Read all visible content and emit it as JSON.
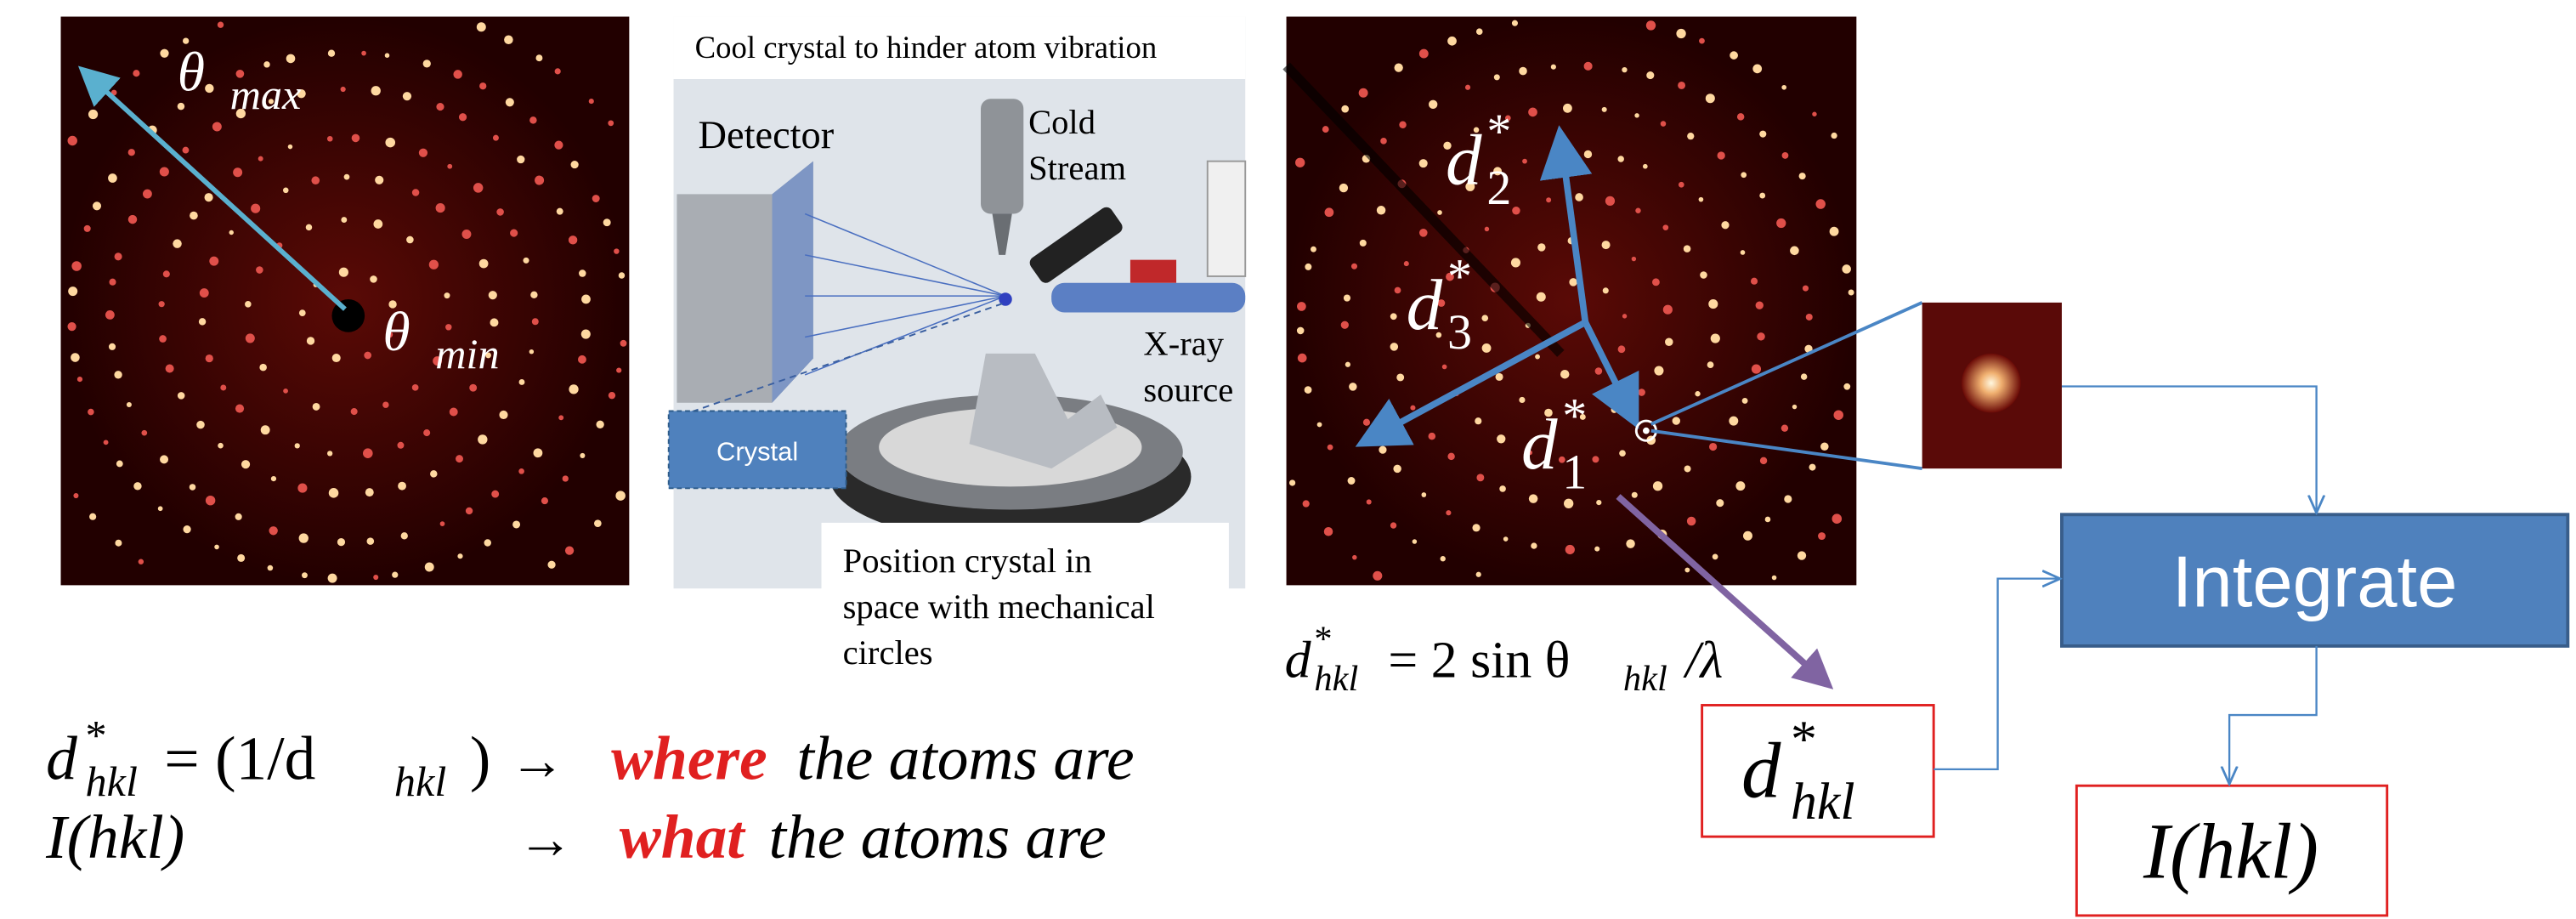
{
  "left_pattern": {
    "max_label": {
      "base": "θ",
      "sub": "max"
    },
    "min_label": {
      "base": "θ",
      "sub": "min"
    }
  },
  "instrument": {
    "caption_top": "Cool crystal to hinder atom vibration",
    "detector": "Detector",
    "cold_stream": [
      "Cold",
      "Stream"
    ],
    "xray_source": [
      "X-ray",
      "source"
    ],
    "crystal": "Crystal",
    "caption_bottom": [
      "Position crystal in",
      "space with mechanical",
      "circles"
    ]
  },
  "right_pattern": {
    "vectors": [
      {
        "base": "d",
        "sup": "*",
        "sub": "2"
      },
      {
        "base": "d",
        "sup": "*",
        "sub": "3"
      },
      {
        "base": "d",
        "sup": "*",
        "sub": "1"
      }
    ]
  },
  "formula": {
    "base": "d",
    "sup": "*",
    "sub": "hkl",
    "middle": "= 2 sin θ",
    "middle_sub": "hkl",
    "tail": "/λ"
  },
  "flow": {
    "process": "Integrate",
    "input": {
      "base": "d",
      "sup": "*",
      "sub": "hkl"
    },
    "output": "I(hkl)"
  },
  "summary": {
    "rows": [
      {
        "base": "d",
        "sup": "*",
        "sub": "hkl",
        "rest": "= (1/d",
        "rest_sub": "hkl",
        "close": ")",
        "arrow": "→",
        "emphasis": "where",
        "tail": "the atoms are"
      },
      {
        "lhs": "I(hkl)",
        "arrow": "→",
        "emphasis": "what",
        "tail": "the atoms are"
      }
    ]
  }
}
